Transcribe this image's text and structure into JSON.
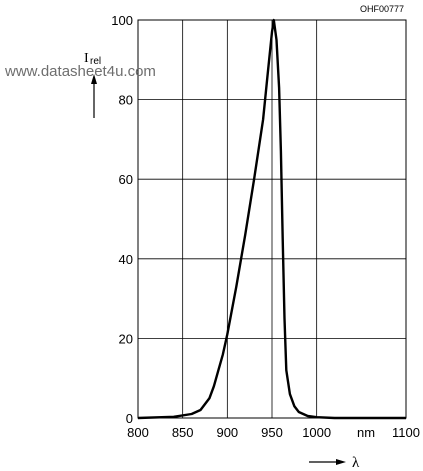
{
  "chart_data": {
    "type": "line",
    "figure_code": "OHF00777",
    "watermark": "www.datasheet4u.com",
    "ylabel": "I",
    "ylabel_sub": "rel",
    "xlabel": "λ",
    "x_unit_label": "nm",
    "xlim": [
      800,
      1100
    ],
    "ylim": [
      0,
      100
    ],
    "x_ticks": [
      "800",
      "850",
      "900",
      "950",
      "1000",
      "1100"
    ],
    "y_ticks": [
      "0",
      "20",
      "40",
      "60",
      "80",
      "100"
    ],
    "grid": true,
    "series": [
      {
        "x": [
          800,
          840,
          860,
          870,
          880,
          885,
          890,
          895,
          900,
          910,
          920,
          930,
          940,
          945,
          950,
          952,
          955,
          958,
          960,
          962,
          964,
          966,
          970,
          975,
          980,
          990,
          1000,
          1020,
          1100
        ],
        "y": [
          0,
          0.3,
          1,
          2,
          5,
          8,
          12,
          16,
          21,
          33,
          46,
          60,
          75,
          86,
          97,
          100,
          95,
          83,
          67,
          45,
          25,
          12,
          6,
          3,
          1.5,
          0.5,
          0.2,
          0,
          0
        ]
      }
    ]
  }
}
